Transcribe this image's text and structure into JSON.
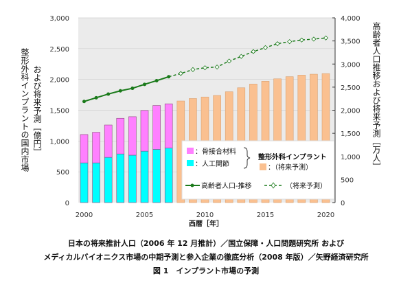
{
  "chart_data": {
    "type": "bar",
    "categories": [
      2000,
      2001,
      2002,
      2003,
      2004,
      2005,
      2006,
      2007,
      2008,
      2009,
      2010,
      2011,
      2012,
      2013,
      2014,
      2015,
      2016,
      2017,
      2018,
      2019,
      2020
    ],
    "series": [
      {
        "name": "人工関節",
        "axis": "left",
        "color": "#00ffff",
        "values": [
          645,
          645,
          735,
          790,
          770,
          835,
          865,
          885,
          null,
          null,
          null,
          null,
          null,
          null,
          null,
          null,
          null,
          null,
          null,
          null,
          null
        ]
      },
      {
        "name": "骨接合材料",
        "axis": "left",
        "color": "#ff80ff",
        "values": [
          460,
          497,
          525,
          579,
          625,
          661,
          712,
          719,
          null,
          null,
          null,
          null,
          null,
          null,
          null,
          null,
          null,
          null,
          null,
          null,
          null
        ]
      },
      {
        "name": "（将来予測）",
        "axis": "left",
        "color": "#fac090",
        "values": [
          null,
          null,
          null,
          null,
          null,
          null,
          null,
          null,
          1650,
          1690,
          1715,
          1740,
          1800,
          1865,
          1925,
          1970,
          2010,
          2045,
          2070,
          2085,
          2095
        ]
      },
      {
        "name": "高齢者人口-推移",
        "axis": "right",
        "type": "line",
        "color": "#1a7a1a",
        "values": [
          2190,
          2270,
          2350,
          2420,
          2475,
          2560,
          2640,
          2725,
          null,
          null,
          null,
          null,
          null,
          null,
          null,
          null,
          null,
          null,
          null,
          null,
          null
        ]
      },
      {
        "name": "（将来予測）",
        "axis": "right",
        "type": "line",
        "dashed": true,
        "color": "#1a7a1a",
        "values": [
          null,
          null,
          null,
          null,
          null,
          null,
          null,
          2725,
          2795,
          2880,
          2920,
          2935,
          3065,
          3165,
          3270,
          3355,
          3440,
          3485,
          3520,
          3540,
          3565
        ]
      }
    ],
    "xticks": [
      "2000",
      "2005",
      "2010",
      "2015",
      "2020"
    ],
    "ylim": [
      0,
      3000
    ],
    "yticks": [
      "0",
      "500",
      "1,000",
      "1,500",
      "2,000",
      "2,500",
      "3,000"
    ],
    "y2lim": [
      0,
      4000
    ],
    "y2ticks": [
      "0",
      "500",
      "1,000",
      "1,500",
      "2,000",
      "2,500",
      "3,000",
      "3,500",
      "4,000"
    ],
    "xlabel": "西暦［年］",
    "ylabel_line1": "整形外科インプラントの国内市場",
    "ylabel_line2": "および将来予測［億円］",
    "y2label": "高齢者人口推移および将来予測［万人］",
    "legend": {
      "bone": "：骨接合材料",
      "joint": "：人工関節",
      "group": "整形外科インプラント",
      "forecast": "：（将来予測）",
      "line": "高齢者人口-推移",
      "line_forecast": "（将来予測）"
    },
    "grid": true,
    "legend_position": "bottom-right",
    "background": "#ebebeb"
  },
  "caption": {
    "line1": "日本の将来推計人口（2006 年 12 月推計）／国立保障・人口問題研究所 および",
    "line2": "メディカルバイオニクス市場の中期予測と参入企業の徹底分析（2008 年版）／矢野経済研究所",
    "title": "図 1　インプラント市場の予測"
  }
}
